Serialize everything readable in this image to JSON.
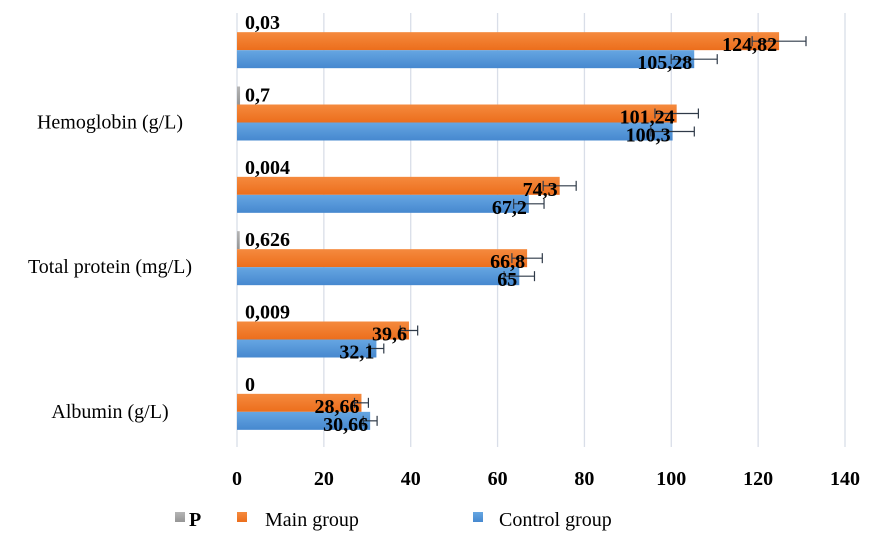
{
  "chart_data": {
    "type": "bar",
    "orientation": "horizontal",
    "title": "",
    "xlabel": "",
    "ylabel": "",
    "xlim": [
      0,
      140
    ],
    "x_ticks": [
      "0",
      "20",
      "40",
      "60",
      "80",
      "100",
      "120",
      "140"
    ],
    "x_tick_values": [
      0,
      20,
      40,
      60,
      80,
      100,
      120,
      140
    ],
    "grid": true,
    "legend_position": "bottom",
    "categories": [
      "Albumin (g/L)",
      "",
      "Total protein (mg/L)",
      "",
      "Hemoglobin (g/L)",
      ""
    ],
    "series": [
      {
        "name": "P",
        "color": "#a5a5a5",
        "values": [
          0,
          0.009,
          0.626,
          0.004,
          0.7,
          0.03
        ],
        "labels": [
          "0",
          "0,009",
          "0,626",
          "0,004",
          "0,7",
          "0,03"
        ]
      },
      {
        "name": "Main group",
        "color": "#ed7d31",
        "values": [
          28.66,
          39.6,
          66.8,
          74.3,
          101.24,
          124.82
        ],
        "labels": [
          "28,66",
          "39,6",
          "66,8",
          "74,3",
          "101,24",
          "124,82"
        ],
        "errors": [
          1.6,
          2.0,
          3.5,
          3.8,
          5.0,
          6.2
        ]
      },
      {
        "name": "Control group",
        "color": "#5b9bd5",
        "values": [
          30.66,
          32.1,
          65,
          67.2,
          100.3,
          105.28
        ],
        "labels": [
          "30,66",
          "32,1",
          "65",
          "67,2",
          "100,3",
          "105,28"
        ],
        "errors": [
          1.6,
          1.7,
          3.5,
          3.5,
          5.0,
          5.3
        ]
      }
    ]
  },
  "legend": {
    "items": [
      {
        "label": "P",
        "color": "#a5a5a5"
      },
      {
        "label": "Main group",
        "color": "#ed7d31"
      },
      {
        "label": "Control group",
        "color": "#5b9bd5"
      }
    ]
  }
}
